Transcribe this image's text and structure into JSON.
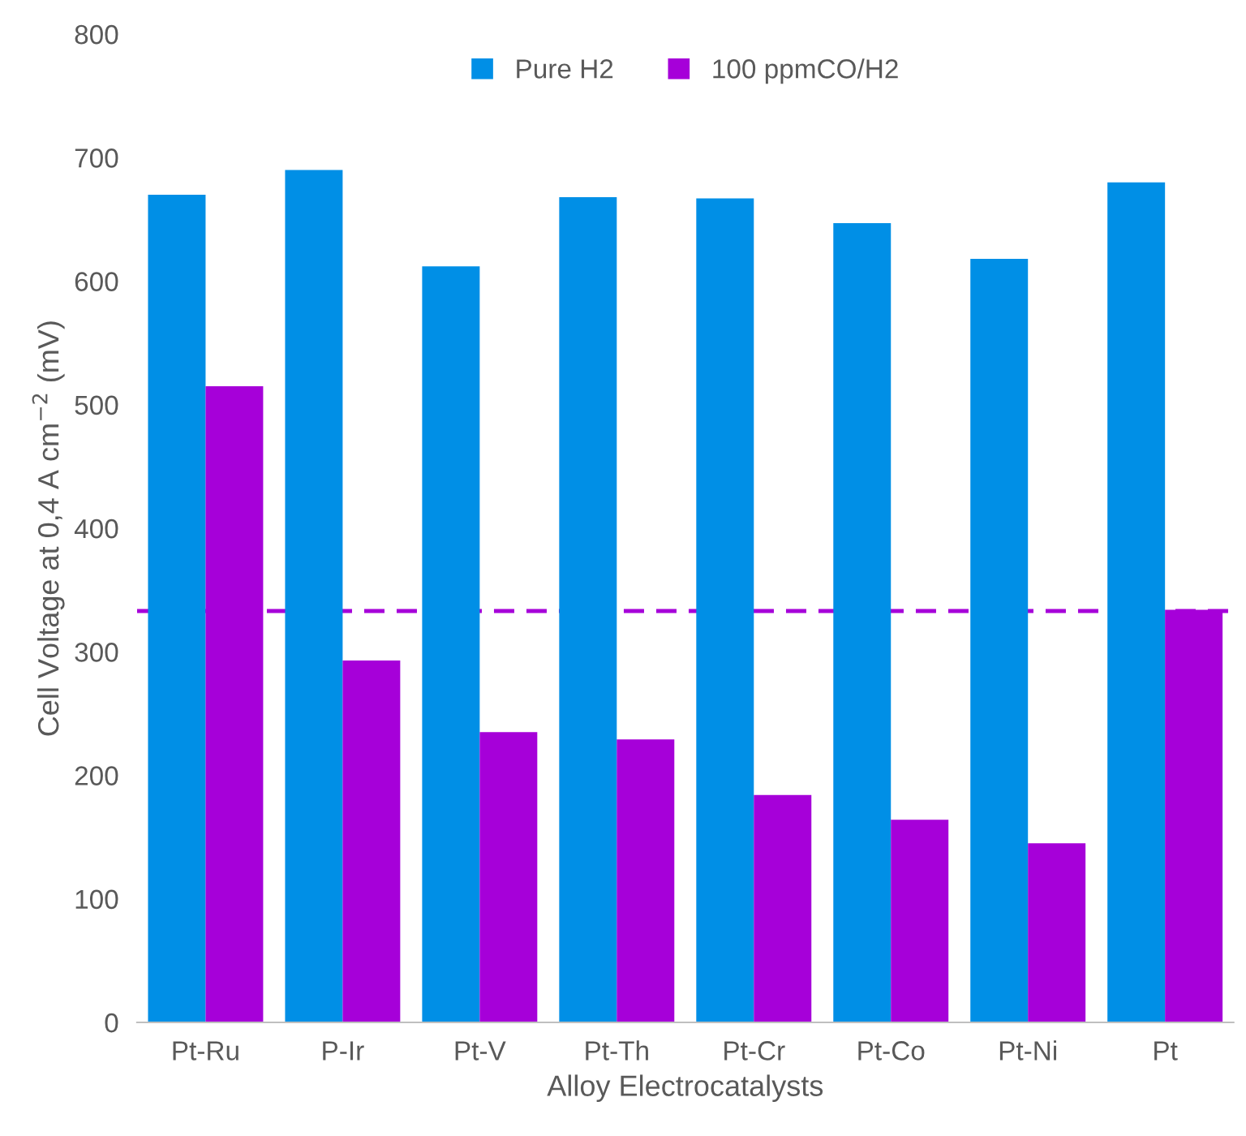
{
  "chart_data": {
    "type": "bar",
    "xlabel": "Alloy Electrocatalysts",
    "ylabel": "Cell Voltage at 0,4 A cm$^{−2}$ (mV)",
    "categories": [
      "Pt-Ru",
      "P-Ir",
      "Pt-V",
      "Pt-Th",
      "Pt-Cr",
      "Pt-Co",
      "Pt-Ni",
      "Pt"
    ],
    "series": [
      {
        "name": "Pure H2",
        "color": "#008fe6",
        "values": [
          670,
          690,
          612,
          668,
          667,
          647,
          618,
          680
        ]
      },
      {
        "name": "100 ppmCO/H2",
        "color": "#a600d9",
        "values": [
          515,
          293,
          235,
          229,
          184,
          164,
          145,
          334
        ]
      }
    ],
    "ref_lines": [
      {
        "axis": "y",
        "value": 333,
        "color": "#a600d9",
        "line_style": "dashed"
      }
    ],
    "ylim": [
      0,
      800
    ],
    "yticks": [
      0,
      100,
      200,
      300,
      400,
      500,
      600,
      700,
      800
    ],
    "grid": false,
    "legend": "top"
  }
}
